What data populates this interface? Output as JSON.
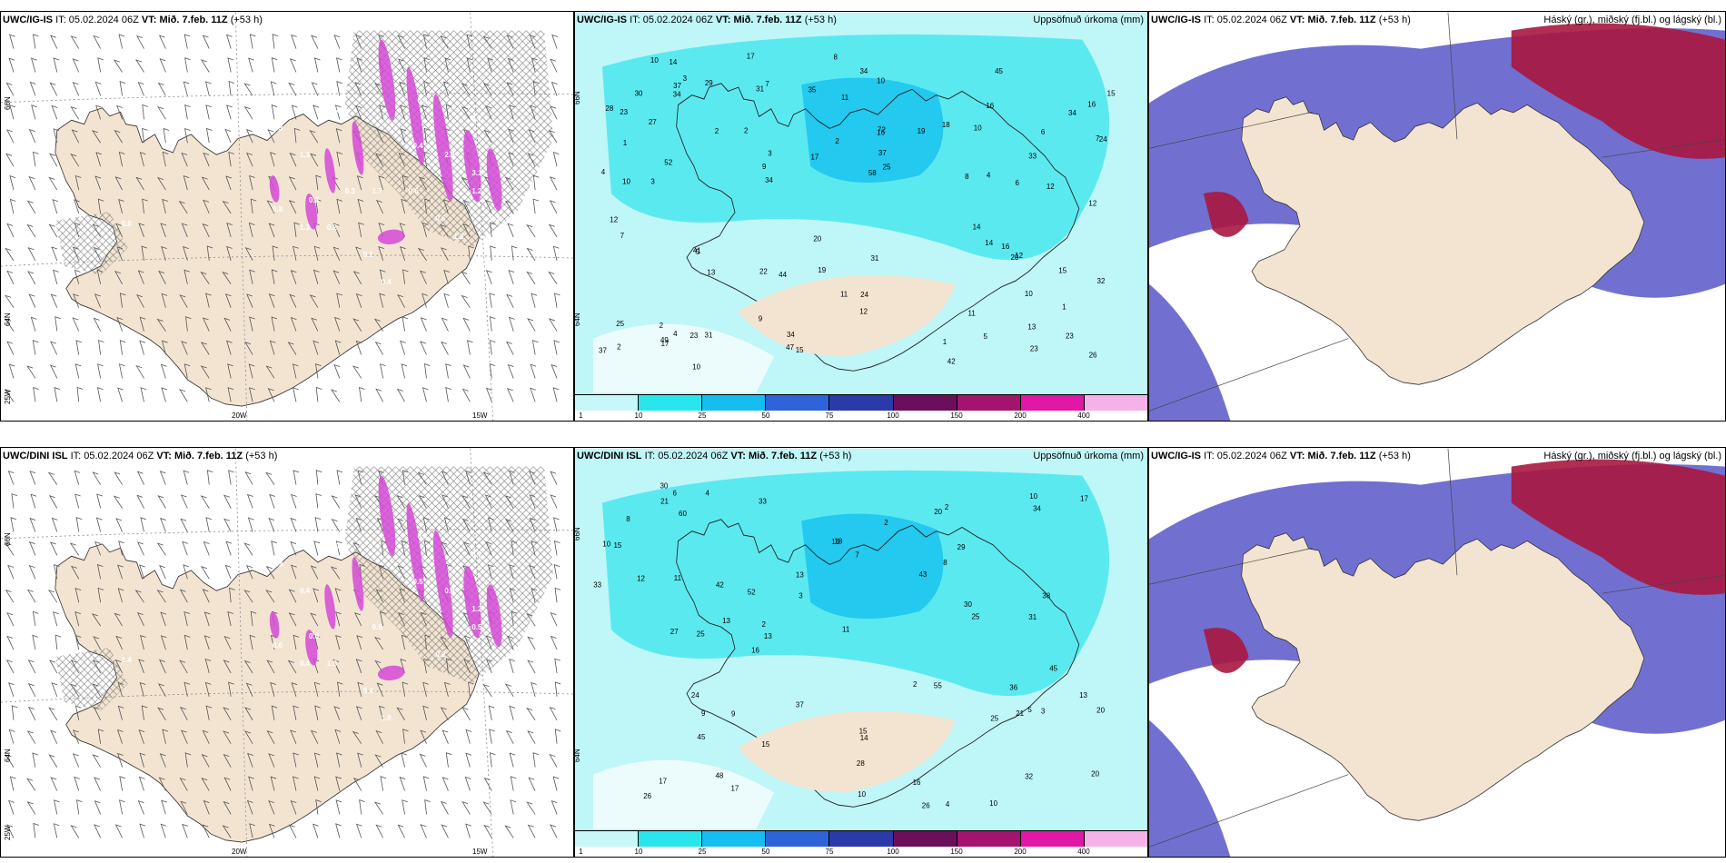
{
  "rows": [
    {
      "panels": [
        {
          "model": "UWC/IG-IS",
          "it_label": "IT:",
          "it": "05.02.2024 06Z",
          "vt_label": "VT:",
          "vt": "Mið. 7.feb. 11Z",
          "lead": "(+53 h)",
          "right_title": "",
          "type": "wind-precip",
          "labels": {
            "lat66": "66N",
            "lat64": "64N",
            "lon25": "25W",
            "lon20": "20W",
            "lon15": "15W"
          },
          "values": [
            "0.8",
            "0.3",
            "1.3",
            "0.2",
            "0.1",
            "0.4",
            "2.7",
            "2.3",
            "0.4",
            "1.7",
            "0.8",
            "1.2",
            "0.8",
            "0.6",
            "3.1",
            "2.5",
            "1.3",
            "0.8",
            "0.3",
            "0.2",
            "0.6",
            "1.2"
          ]
        },
        {
          "model": "UWC/IG-IS",
          "it_label": "IT:",
          "it": "05.02.2024 06Z",
          "vt_label": "VT:",
          "vt": "Mið. 7.feb. 11Z",
          "lead": "(+53 h)",
          "right_title": "Uppsöfnuð úrkoma (mm)",
          "type": "accum",
          "labels": {
            "lat66": "66N",
            "lat64": "64N"
          },
          "values": [
            "7",
            "10",
            "9",
            "10",
            "8",
            "10",
            "8",
            "5",
            "15",
            "13",
            "34",
            "24",
            "23",
            "31",
            "13",
            "72",
            "44",
            "34",
            "28",
            "23",
            "31",
            "33",
            "30",
            "12",
            "17",
            "19",
            "16",
            "14",
            "31",
            "37",
            "58",
            "45",
            "37",
            "32",
            "20",
            "34",
            "15",
            "24",
            "35",
            "52",
            "47",
            "41",
            "37",
            "34",
            "23",
            "16",
            "14",
            "10",
            "18",
            "15",
            "14",
            "25",
            "34",
            "16",
            "17",
            "6",
            "7",
            "10",
            "9",
            "4",
            "2",
            "1",
            "2",
            "6",
            "23",
            "27",
            "11",
            "42",
            "12",
            "20",
            "25",
            "11",
            "3",
            "12",
            "3",
            "4",
            "12",
            "12",
            "2",
            "2",
            "1",
            "3",
            "5",
            "4",
            "26",
            "17",
            "49",
            "29",
            "19",
            "22",
            "11",
            "16",
            "7",
            "10",
            "2",
            "1"
          ]
        },
        {
          "model": "UWC/IG-IS",
          "it_label": "IT:",
          "it": "05.02.2024 06Z",
          "vt_label": "VT:",
          "vt": "Mið. 7.feb. 11Z",
          "lead": "(+53 h)",
          "right_title": "Háský (gr.), miðský (fj.bl.) og lágský (bl.)",
          "type": "cloud"
        }
      ]
    },
    {
      "panels": [
        {
          "model": "UWC/DINI ISL",
          "it_label": "IT:",
          "it": "05.02.2024 06Z",
          "vt_label": "VT:",
          "vt": "Mið. 7.feb. 11Z",
          "lead": "(+53 h)",
          "right_title": "",
          "type": "wind-precip",
          "labels": {
            "lat66": "66N",
            "lat64": "64N",
            "lon25": "25W",
            "lon20": "20W",
            "lon15": "15W"
          },
          "values": [
            "1.4",
            "0.9",
            "0.4",
            "1.8",
            "0.4",
            "1.0",
            "0.7",
            "0.3",
            "0.5",
            "0.6",
            "0.6",
            "0.5",
            "0.4",
            "0.2",
            "1.2",
            "1.0",
            "0.4",
            "0.6"
          ]
        },
        {
          "model": "UWC/DINI ISL",
          "it_label": "IT:",
          "it": "05.02.2024 06Z",
          "vt_label": "VT:",
          "vt": "Mið. 7.feb. 11Z",
          "lead": "(+53 h)",
          "right_title": "Uppsöfnuð úrkoma (mm)",
          "type": "accum",
          "labels": {
            "lat66": "66N",
            "lat64": "64N"
          },
          "values": [
            "13",
            "10",
            "14",
            "17",
            "15",
            "52",
            "33",
            "29",
            "26",
            "31",
            "55",
            "34",
            "33",
            "30",
            "17",
            "60",
            "45",
            "48",
            "20",
            "18",
            "12",
            "36",
            "32",
            "27",
            "17",
            "43",
            "25",
            "37",
            "24",
            "13",
            "28",
            "38",
            "20",
            "16",
            "20",
            "25",
            "15",
            "10",
            "13",
            "30",
            "21",
            "8",
            "9",
            "4",
            "2",
            "2",
            "3",
            "2",
            "2",
            "4",
            "16",
            "25",
            "13",
            "5",
            "26",
            "45",
            "42",
            "21",
            "16",
            "3",
            "6",
            "11",
            "10",
            "7",
            "9",
            "8",
            "10",
            "11",
            "15"
          ]
        },
        {
          "model": "UWC/IG-IS",
          "it_label": "IT:",
          "it": "05.02.2024 06Z",
          "vt_label": "VT:",
          "vt": "Mið. 7.feb. 11Z",
          "lead": "(+53 h)",
          "right_title": "Háský (gr.), miðský (fj.bl.) og lágský (bl.)",
          "type": "cloud"
        }
      ]
    }
  ],
  "colorbar": {
    "labels": [
      "1",
      "10",
      "25",
      "50",
      "75",
      "100",
      "150",
      "200",
      "400"
    ],
    "colors": [
      "#c8f7f7",
      "#29e6ec",
      "#16bdf1",
      "#2f63d9",
      "#2a3aa8",
      "#6b0f5a",
      "#a4146f",
      "#e117a5",
      "#f5b2e6"
    ]
  },
  "colors": {
    "land": "#f3e4d2",
    "sea_accum": "#bff6f8",
    "precip_light": "#30e4ec",
    "precip_med": "#15c0ef",
    "cloud_low": "#5857c9",
    "cloud_high": "#a8173f",
    "precip_pink": "#d54ad6"
  }
}
